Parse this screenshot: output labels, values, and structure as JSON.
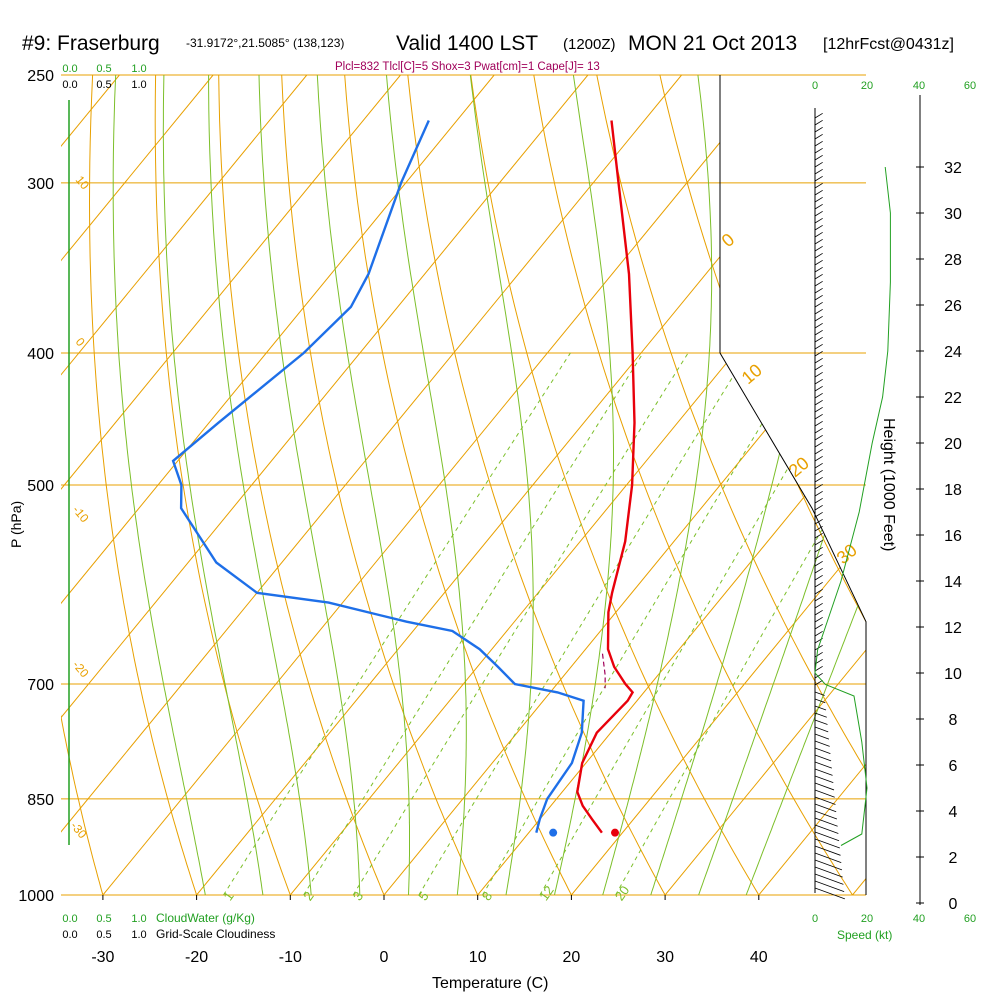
{
  "header": {
    "station": "#9: Fraserburg",
    "coords": "-31.9172°,21.5085° (138,123)",
    "valid": "Valid 1400 LST",
    "zulu": "(1200Z)",
    "date": "MON 21 Oct 2013",
    "forecast": "[12hrFcst@0431z]",
    "indices": "Plcl=832 Tlcl[C]=5 Shox=3 Pwat[cm]=1 Cape[J]= 13"
  },
  "colors": {
    "isotherm": "#e8a000",
    "dry_adiabat": "#8bc34a",
    "moist_adiabat": "#7cbf2a",
    "temperature": "#e8000b",
    "dewpoint": "#1e6fe8",
    "scale_green": "#22a022",
    "parcel": "#a0005a",
    "indices": "#a0005a"
  },
  "chart_data": {
    "type": "line",
    "subtype": "skew-T log-P sounding",
    "xlabel": "Temperature (C)",
    "ylabel": "P (hPa)",
    "x_ticks": [
      -30,
      -20,
      -10,
      0,
      10,
      20,
      30,
      40
    ],
    "pressure_ticks": [
      250,
      300,
      400,
      500,
      700,
      850,
      1000
    ],
    "xlim": [
      -34,
      48
    ],
    "ylim": [
      1000,
      250
    ],
    "right_axis_label": "Height (1000 Feet)",
    "height_ticks": [
      0,
      2,
      4,
      6,
      8,
      10,
      12,
      14,
      16,
      18,
      20,
      22,
      24,
      26,
      28,
      30,
      32
    ],
    "mixing_ratio_labels": [
      "1",
      "2",
      "3",
      "5",
      "8",
      "12",
      "20"
    ],
    "isotherm_labels": [
      "10",
      "0",
      "-10",
      "-20",
      "-30"
    ],
    "adiabat_labels": [
      "0",
      "10",
      "20",
      "30"
    ],
    "top_scale_cloudwater": [
      "0.0",
      "0.5",
      "1.0"
    ],
    "top_scale_cloudiness": [
      "0.0",
      "0.5",
      "1.0"
    ],
    "bottom_scale_cloudwater": [
      "0.0",
      "0.5",
      "1.0"
    ],
    "bottom_scale_cloudiness": [
      "0.0",
      "0.5",
      "1.0"
    ],
    "cloudwater_label": "CloudWater (g/Kg)",
    "cloudiness_label": "Grid-Scale Cloudiness",
    "speed_label": "Speed (kt)",
    "speed_ticks": [
      "0",
      "20",
      "40",
      "60"
    ],
    "temperature": [
      {
        "p": 900,
        "t": 17.8
      },
      {
        "p": 880,
        "t": 15.6
      },
      {
        "p": 860,
        "t": 13.4
      },
      {
        "p": 840,
        "t": 11.6
      },
      {
        "p": 800,
        "t": 9.6
      },
      {
        "p": 760,
        "t": 8.5
      },
      {
        "p": 720,
        "t": 9.0
      },
      {
        "p": 710,
        "t": 8.8
      },
      {
        "p": 700,
        "t": 7.3
      },
      {
        "p": 680,
        "t": 4.6
      },
      {
        "p": 660,
        "t": 2.4
      },
      {
        "p": 620,
        "t": -0.8
      },
      {
        "p": 600,
        "t": -2.1
      },
      {
        "p": 550,
        "t": -5.2
      },
      {
        "p": 500,
        "t": -9.4
      },
      {
        "p": 450,
        "t": -14.6
      },
      {
        "p": 400,
        "t": -20.9
      },
      {
        "p": 350,
        "t": -28.2
      },
      {
        "p": 300,
        "t": -37.3
      },
      {
        "p": 270,
        "t": -43.5
      }
    ],
    "dewpoint": [
      {
        "p": 900,
        "t": 10.8
      },
      {
        "p": 880,
        "t": 10.0
      },
      {
        "p": 850,
        "t": 9.0
      },
      {
        "p": 800,
        "t": 8.5
      },
      {
        "p": 760,
        "t": 6.9
      },
      {
        "p": 720,
        "t": 4.3
      },
      {
        "p": 710,
        "t": 0.8
      },
      {
        "p": 700,
        "t": -4.5
      },
      {
        "p": 680,
        "t": -7.8
      },
      {
        "p": 660,
        "t": -11.3
      },
      {
        "p": 640,
        "t": -15.8
      },
      {
        "p": 630,
        "t": -21.5
      },
      {
        "p": 610,
        "t": -31.5
      },
      {
        "p": 600,
        "t": -40.0
      },
      {
        "p": 570,
        "t": -47.0
      },
      {
        "p": 520,
        "t": -55.5
      },
      {
        "p": 500,
        "t": -57.5
      },
      {
        "p": 480,
        "t": -60.5
      },
      {
        "p": 450,
        "t": -59.0
      },
      {
        "p": 400,
        "t": -56.0
      },
      {
        "p": 370,
        "t": -55.0
      },
      {
        "p": 350,
        "t": -56.0
      },
      {
        "p": 300,
        "t": -60.5
      },
      {
        "p": 270,
        "t": -63.0
      }
    ],
    "surface_temperature": 19.2,
    "surface_dewpoint": 12.6,
    "surface_pressure": 900,
    "parcel": [
      {
        "p": 665,
        "t": 2.2
      },
      {
        "p": 690,
        "t": 4.4
      },
      {
        "p": 705,
        "t": 5.5
      }
    ],
    "wind_speed_profile_kt": [
      {
        "h": 2.5,
        "v": 10
      },
      {
        "h": 3,
        "v": 18
      },
      {
        "h": 5,
        "v": 20
      },
      {
        "h": 7,
        "v": 18
      },
      {
        "h": 9,
        "v": 15
      },
      {
        "h": 9.5,
        "v": 4
      },
      {
        "h": 10,
        "v": 0
      },
      {
        "h": 11,
        "v": 1
      },
      {
        "h": 12,
        "v": 4
      },
      {
        "h": 14,
        "v": 10
      },
      {
        "h": 17,
        "v": 17
      },
      {
        "h": 20,
        "v": 22
      },
      {
        "h": 22,
        "v": 26
      },
      {
        "h": 24,
        "v": 28
      },
      {
        "h": 27,
        "v": 29
      },
      {
        "h": 30,
        "v": 29
      },
      {
        "h": 32,
        "v": 27
      }
    ],
    "grid": true
  }
}
